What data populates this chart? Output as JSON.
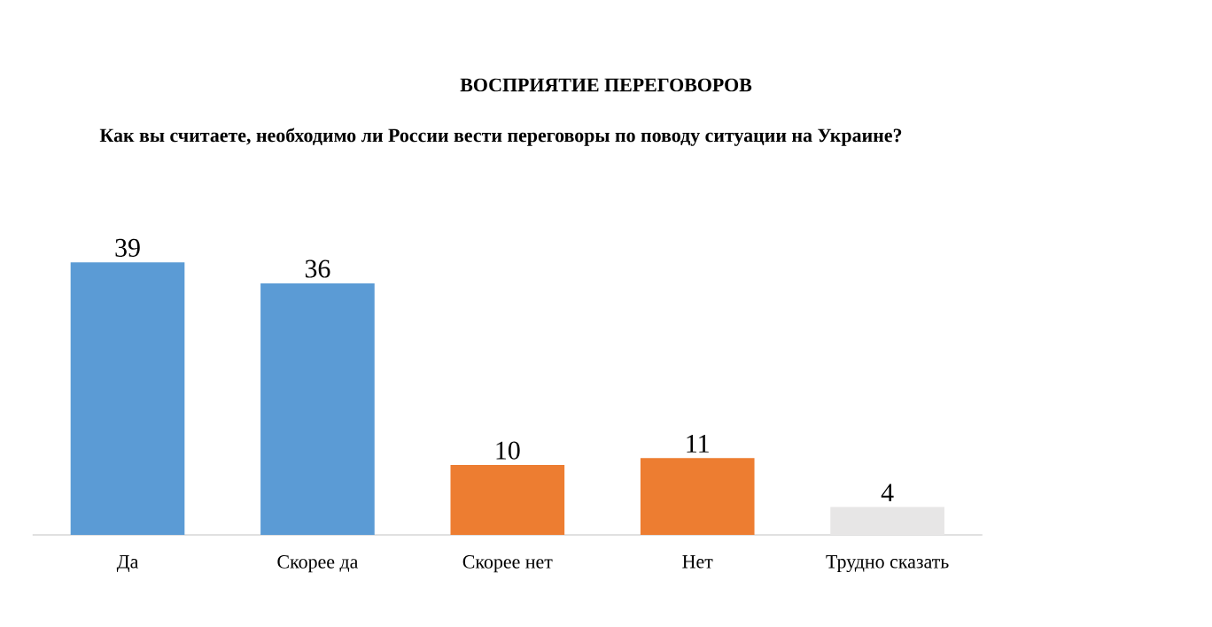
{
  "chart_data": {
    "type": "bar",
    "title": "ВОСПРИЯТИЕ ПЕРЕГОВОРОВ",
    "subtitle": "Как вы считаете, необходимо ли России вести переговоры по поводу ситуации на Украине?",
    "categories": [
      "Да",
      "Скорее да",
      "Скорее нет",
      "Нет",
      "Трудно сказать"
    ],
    "values": [
      39,
      36,
      10,
      11,
      4
    ],
    "colors": [
      "#5b9bd5",
      "#5b9bd5",
      "#ed7d31",
      "#ed7d31",
      "#e7e6e6"
    ],
    "data_labels": true
  }
}
